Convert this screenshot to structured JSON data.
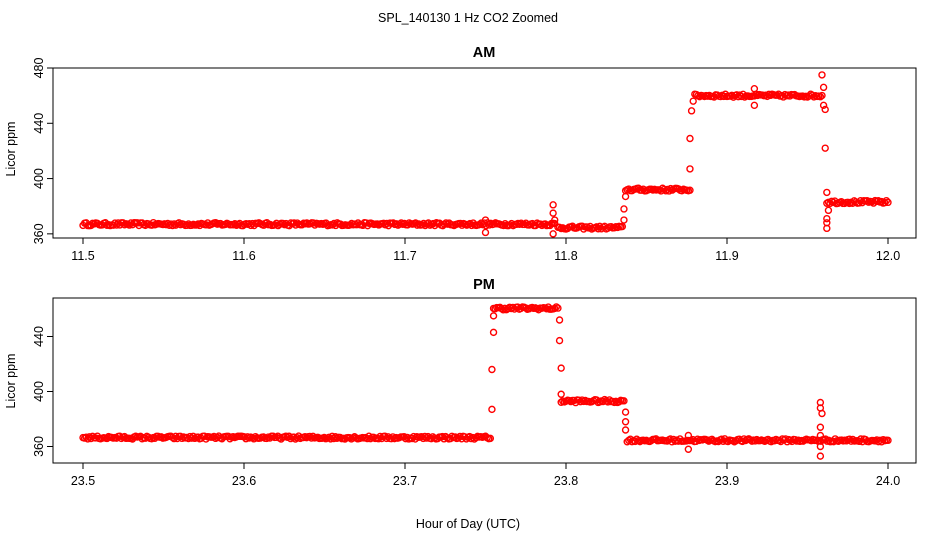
{
  "figure_title": "SPL_140130  1 Hz CO2 Zoomed",
  "x_axis_label": "Hour of Day (UTC)",
  "colors": {
    "points": "#ff0000",
    "frame": "#000000"
  },
  "chart_data": [
    {
      "type": "scatter",
      "title": "AM",
      "xlabel": "",
      "ylabel": "Licor ppm",
      "xlim": [
        11.5,
        12.0
      ],
      "ylim": [
        357,
        480
      ],
      "xticks": [
        11.5,
        11.6,
        11.7,
        11.8,
        11.9,
        12.0
      ],
      "xtick_labels": [
        "11.5",
        "11.6",
        "11.7",
        "11.8",
        "11.9",
        "12.0"
      ],
      "yticks": [
        360,
        400,
        440,
        480
      ],
      "ytick_labels": [
        "360",
        "400",
        "440",
        "480"
      ],
      "marker": "open-circle",
      "segments": [
        {
          "x_start": 11.5,
          "x_end": 11.793,
          "y": 367
        },
        {
          "x_start": 11.795,
          "x_end": 11.835,
          "y": 364.5
        },
        {
          "x_start": 11.837,
          "x_end": 11.877,
          "y": 392
        },
        {
          "x_start": 11.88,
          "x_end": 11.959,
          "y": 460
        },
        {
          "x_start": 11.962,
          "x_end": 12.0,
          "y": 383
        }
      ],
      "outliers": [
        {
          "x": 11.75,
          "y": 370
        },
        {
          "x": 11.75,
          "y": 361
        },
        {
          "x": 11.792,
          "y": 381
        },
        {
          "x": 11.792,
          "y": 375
        },
        {
          "x": 11.793,
          "y": 370
        },
        {
          "x": 11.792,
          "y": 360
        },
        {
          "x": 11.836,
          "y": 370
        },
        {
          "x": 11.836,
          "y": 378
        },
        {
          "x": 11.837,
          "y": 387
        },
        {
          "x": 11.877,
          "y": 407
        },
        {
          "x": 11.877,
          "y": 429
        },
        {
          "x": 11.878,
          "y": 449
        },
        {
          "x": 11.879,
          "y": 456
        },
        {
          "x": 11.917,
          "y": 465
        },
        {
          "x": 11.917,
          "y": 453
        },
        {
          "x": 11.959,
          "y": 475
        },
        {
          "x": 11.96,
          "y": 466
        },
        {
          "x": 11.96,
          "y": 453
        },
        {
          "x": 11.961,
          "y": 450
        },
        {
          "x": 11.961,
          "y": 422
        },
        {
          "x": 11.962,
          "y": 390
        },
        {
          "x": 11.962,
          "y": 371
        },
        {
          "x": 11.962,
          "y": 368
        },
        {
          "x": 11.962,
          "y": 364
        },
        {
          "x": 11.963,
          "y": 377
        }
      ]
    },
    {
      "type": "scatter",
      "title": "PM",
      "xlabel": "",
      "ylabel": "Licor ppm",
      "xlim": [
        23.5,
        24.0
      ],
      "ylim": [
        348,
        468
      ],
      "xticks": [
        23.5,
        23.6,
        23.7,
        23.8,
        23.9,
        24.0
      ],
      "xtick_labels": [
        "23.5",
        "23.6",
        "23.7",
        "23.8",
        "23.9",
        "24.0"
      ],
      "yticks": [
        360,
        400,
        440
      ],
      "ytick_labels": [
        "360",
        "400",
        "440"
      ],
      "marker": "open-circle",
      "segments": [
        {
          "x_start": 23.5,
          "x_end": 23.753,
          "y": 366.5
        },
        {
          "x_start": 23.755,
          "x_end": 23.795,
          "y": 460.5
        },
        {
          "x_start": 23.797,
          "x_end": 23.836,
          "y": 393
        },
        {
          "x_start": 23.838,
          "x_end": 24.0,
          "y": 364.5
        }
      ],
      "outliers": [
        {
          "x": 23.754,
          "y": 387
        },
        {
          "x": 23.754,
          "y": 416
        },
        {
          "x": 23.755,
          "y": 443
        },
        {
          "x": 23.755,
          "y": 455
        },
        {
          "x": 23.796,
          "y": 452
        },
        {
          "x": 23.796,
          "y": 437
        },
        {
          "x": 23.797,
          "y": 417
        },
        {
          "x": 23.797,
          "y": 398
        },
        {
          "x": 23.837,
          "y": 385
        },
        {
          "x": 23.837,
          "y": 378
        },
        {
          "x": 23.837,
          "y": 372
        },
        {
          "x": 23.876,
          "y": 368
        },
        {
          "x": 23.876,
          "y": 358
        },
        {
          "x": 23.958,
          "y": 392
        },
        {
          "x": 23.958,
          "y": 388
        },
        {
          "x": 23.959,
          "y": 384
        },
        {
          "x": 23.958,
          "y": 374
        },
        {
          "x": 23.958,
          "y": 368
        },
        {
          "x": 23.958,
          "y": 360
        },
        {
          "x": 23.958,
          "y": 353
        }
      ]
    }
  ]
}
